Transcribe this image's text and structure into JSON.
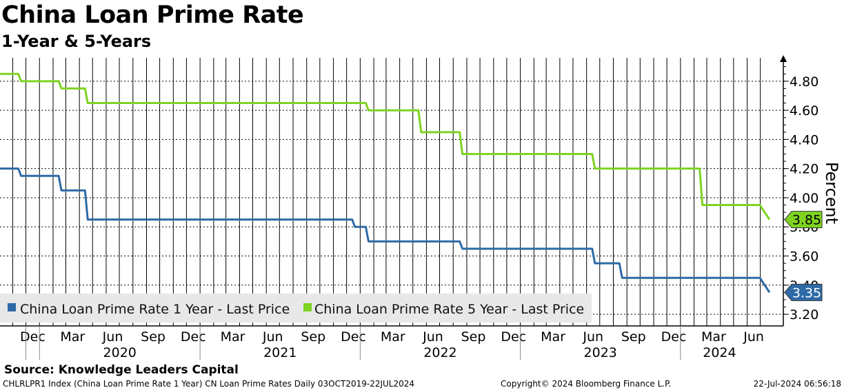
{
  "header": {
    "title": "China Loan Prime Rate",
    "subtitle": "1-Year & 5-Years"
  },
  "source": "Source: Knowledge Leaders Capital",
  "footer": {
    "left": "CHLRLPR1 Index (China Loan Prime Rate 1 Year) CN Loan Prime Rates  Daily 03OCT2019-22JUL2024",
    "center": "Copyright© 2024 Bloomberg Finance L.P.",
    "right": "22-Jul-2024 06:56:18"
  },
  "colors": {
    "one_year": "#2e6aa6",
    "five_year": "#7ed321",
    "grid": "#000000"
  },
  "chart_data": {
    "type": "line",
    "ylabel": "Percent",
    "ylim": [
      3.12,
      4.96
    ],
    "yticks": [
      "4.80",
      "4.60",
      "4.40",
      "4.20",
      "4.00",
      "3.80",
      "3.60",
      "3.40",
      "3.20"
    ],
    "xlim": [
      "2019-10-03",
      "2024-07-22"
    ],
    "month_labels": [
      "Dec",
      "Mar",
      "Jun",
      "Sep",
      "Dec",
      "Mar",
      "Jun",
      "Sep",
      "Dec",
      "Mar",
      "Jun",
      "Sep",
      "Dec",
      "Mar",
      "Jun",
      "Sep",
      "Dec",
      "Mar",
      "Jun"
    ],
    "year_labels": [
      "2020",
      "2021",
      "2022",
      "2023",
      "2024"
    ],
    "legend": {
      "position": "bottom-left",
      "one_year": "China Loan Prime Rate 1 Year - Last Price",
      "five_year": "China Loan Prime Rate 5 Year - Last Price"
    },
    "series": [
      {
        "name": "China Loan Prime Rate 1 Year - Last Price",
        "last_label": "3.35",
        "points": [
          [
            "2019-10-03",
            4.2
          ],
          [
            "2019-11-20",
            4.15
          ],
          [
            "2020-02-20",
            4.05
          ],
          [
            "2020-04-20",
            3.85
          ],
          [
            "2021-12-20",
            3.8
          ],
          [
            "2022-01-20",
            3.7
          ],
          [
            "2022-08-22",
            3.65
          ],
          [
            "2023-06-20",
            3.55
          ],
          [
            "2023-08-21",
            3.45
          ],
          [
            "2024-07-22",
            3.35
          ]
        ]
      },
      {
        "name": "China Loan Prime Rate 5 Year - Last Price",
        "last_label": "3.85",
        "points": [
          [
            "2019-10-03",
            4.85
          ],
          [
            "2019-11-20",
            4.8
          ],
          [
            "2020-02-20",
            4.75
          ],
          [
            "2020-04-20",
            4.65
          ],
          [
            "2022-01-20",
            4.6
          ],
          [
            "2022-05-20",
            4.45
          ],
          [
            "2022-08-22",
            4.3
          ],
          [
            "2023-06-20",
            4.2
          ],
          [
            "2024-02-20",
            3.95
          ],
          [
            "2024-07-22",
            3.85
          ]
        ]
      }
    ]
  }
}
